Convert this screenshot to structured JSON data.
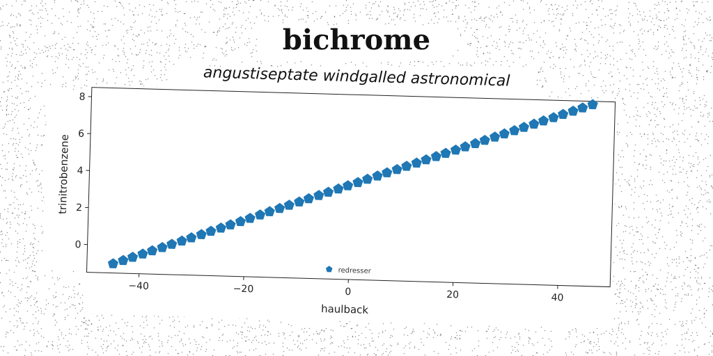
{
  "title": "bichrome",
  "subtitle": "angustiseptate windgalled astronomical",
  "colors": {
    "series": "#1f77b4",
    "axes": "#222222",
    "background": "#ffffff"
  },
  "chart_data": {
    "type": "scatter",
    "xlabel": "haulback",
    "ylabel": "trinitrobenzene",
    "xlim": [
      -50,
      50
    ],
    "ylim": [
      -1.5,
      8.5
    ],
    "xticks": [
      -40,
      -20,
      0,
      20,
      40
    ],
    "yticks": [
      0,
      2,
      4,
      6,
      8
    ],
    "grid": false,
    "legend": {
      "placement": "lower-center",
      "marker": "pentagon"
    },
    "series": [
      {
        "name": "redresser",
        "marker": "pentagon",
        "x": [
          -45.0,
          -43.1,
          -41.3,
          -39.4,
          -37.6,
          -35.7,
          -33.9,
          -32.0,
          -30.2,
          -28.3,
          -26.5,
          -24.6,
          -22.8,
          -20.9,
          -19.1,
          -17.2,
          -15.4,
          -13.5,
          -11.7,
          -9.8,
          -8.0,
          -6.1,
          -4.3,
          -2.4,
          -0.6,
          1.3,
          3.1,
          5.0,
          6.8,
          8.7,
          10.5,
          12.4,
          14.2,
          16.1,
          17.9,
          19.8,
          21.6,
          23.5,
          25.3,
          27.2,
          29.0,
          30.9,
          32.7,
          34.6,
          36.4,
          38.3,
          40.1,
          42.0,
          43.8,
          45.7
        ],
        "y": [
          -1.0,
          -0.81,
          -0.62,
          -0.43,
          -0.24,
          -0.05,
          0.14,
          0.33,
          0.52,
          0.71,
          0.9,
          1.09,
          1.28,
          1.47,
          1.66,
          1.86,
          2.05,
          2.24,
          2.43,
          2.62,
          2.81,
          3.0,
          3.19,
          3.38,
          3.57,
          3.76,
          3.95,
          4.14,
          4.33,
          4.52,
          4.71,
          4.9,
          5.09,
          5.28,
          5.47,
          5.66,
          5.85,
          6.04,
          6.23,
          6.42,
          6.61,
          6.8,
          6.99,
          7.18,
          7.37,
          7.56,
          7.75,
          7.94,
          8.13,
          8.32
        ]
      }
    ]
  }
}
